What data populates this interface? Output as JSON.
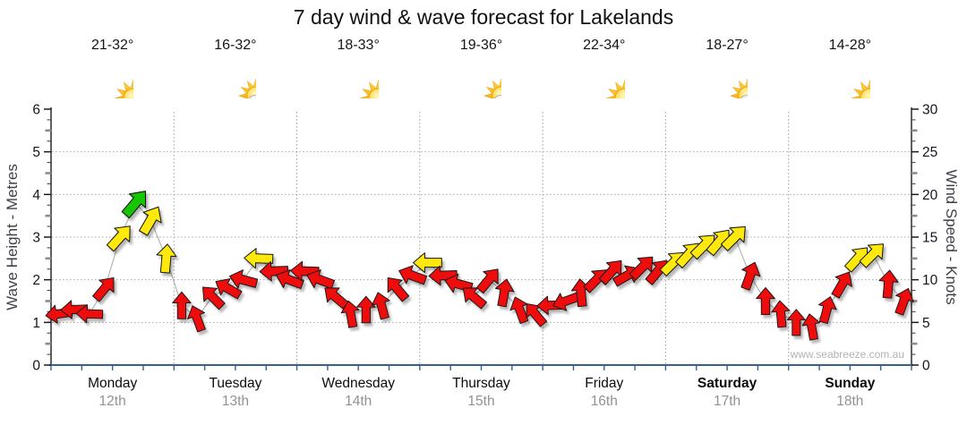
{
  "title": "7 day wind & wave forecast for Lakelands",
  "watermark": "www.seabreeze.com.au",
  "days": [
    {
      "name": "Monday",
      "date": "12th",
      "temp": "21-32°",
      "icon": "sunny",
      "bold": false
    },
    {
      "name": "Tuesday",
      "date": "13th",
      "temp": "16-32°",
      "icon": "partly-cloudy",
      "bold": false
    },
    {
      "name": "Wednesday",
      "date": "14th",
      "temp": "18-33°",
      "icon": "sunny",
      "bold": false
    },
    {
      "name": "Thursday",
      "date": "15th",
      "temp": "19-36°",
      "icon": "partly-cloudy",
      "bold": false
    },
    {
      "name": "Friday",
      "date": "16th",
      "temp": "22-34°",
      "icon": "sunny",
      "bold": false
    },
    {
      "name": "Saturday",
      "date": "17th",
      "temp": "18-27°",
      "icon": "partly-cloudy",
      "bold": true
    },
    {
      "name": "Sunday",
      "date": "18th",
      "temp": "14-28°",
      "icon": "sunny",
      "bold": true
    }
  ],
  "chart_data": {
    "type": "line",
    "title": "7 day wind & wave forecast for Lakelands",
    "y_left": {
      "label": "Wave Height - Metres",
      "min": 0,
      "max": 6,
      "ticks": [
        0,
        1,
        2,
        3,
        4,
        5,
        6
      ]
    },
    "y_right": {
      "label": "Wind Speed - Knots",
      "min": 0,
      "max": 30,
      "ticks": [
        0,
        5,
        10,
        15,
        20,
        25,
        30
      ]
    },
    "x_hours_range": [
      0,
      168
    ],
    "grid": "dotted gray at each labelled value and at day boundaries",
    "arrow_colors": {
      "red": "#ee1111",
      "yellow": "#ffe90a",
      "green": "#17c400"
    },
    "note": "wind arrows plotted every 3h against right axis (knots); arrow rotation = wind direction (0=toward top/N, 90=toward right/E)",
    "point_format": [
      "hour",
      "knots",
      "direction_deg",
      "color"
    ],
    "series": [
      {
        "name": "Wind speed & direction",
        "points": [
          [
            0,
            6,
            262,
            "red"
          ],
          [
            3,
            6.5,
            268,
            "red"
          ],
          [
            6,
            6,
            272,
            "red"
          ],
          [
            9,
            9,
            40,
            "red"
          ],
          [
            12,
            15,
            42,
            "yellow"
          ],
          [
            15,
            19,
            40,
            "green"
          ],
          [
            18,
            17,
            30,
            "yellow"
          ],
          [
            21,
            12.5,
            5,
            "yellow"
          ],
          [
            24,
            7,
            0,
            "red"
          ],
          [
            27,
            5.5,
            340,
            "red"
          ],
          [
            30,
            8,
            315,
            "red"
          ],
          [
            33,
            9,
            300,
            "red"
          ],
          [
            36,
            10,
            285,
            "red"
          ],
          [
            39,
            12.5,
            272,
            "yellow"
          ],
          [
            42,
            11,
            268,
            "red"
          ],
          [
            45,
            10,
            290,
            "red"
          ],
          [
            48,
            11,
            272,
            "red"
          ],
          [
            51,
            10,
            290,
            "red"
          ],
          [
            54,
            8,
            310,
            "red"
          ],
          [
            57,
            6,
            350,
            "red"
          ],
          [
            60,
            6.5,
            0,
            "red"
          ],
          [
            63,
            7,
            345,
            "red"
          ],
          [
            66,
            9,
            320,
            "red"
          ],
          [
            69,
            10.5,
            290,
            "red"
          ],
          [
            72,
            12,
            270,
            "yellow"
          ],
          [
            75,
            10.5,
            268,
            "red"
          ],
          [
            78,
            9.5,
            285,
            "red"
          ],
          [
            81,
            8,
            310,
            "red"
          ],
          [
            84,
            10,
            40,
            "red"
          ],
          [
            87,
            8.5,
            10,
            "red"
          ],
          [
            90,
            6.5,
            340,
            "red"
          ],
          [
            93,
            6,
            320,
            "red"
          ],
          [
            96,
            7,
            268,
            "red"
          ],
          [
            99,
            7.5,
            250,
            "red"
          ],
          [
            102,
            8.5,
            355,
            "red"
          ],
          [
            105,
            10,
            45,
            "red"
          ],
          [
            108,
            11,
            42,
            "red"
          ],
          [
            111,
            10.5,
            60,
            "red"
          ],
          [
            114,
            11.5,
            45,
            "red"
          ],
          [
            117,
            11,
            40,
            "red"
          ],
          [
            120,
            12,
            45,
            "yellow"
          ],
          [
            123,
            13,
            42,
            "yellow"
          ],
          [
            126,
            14,
            45,
            "yellow"
          ],
          [
            129,
            14.5,
            40,
            "yellow"
          ],
          [
            132,
            15,
            45,
            "yellow"
          ],
          [
            135,
            10.5,
            20,
            "red"
          ],
          [
            138,
            7.5,
            0,
            "red"
          ],
          [
            141,
            6,
            355,
            "red"
          ],
          [
            144,
            5,
            0,
            "red"
          ],
          [
            147,
            4.5,
            350,
            "red"
          ],
          [
            150,
            6.5,
            15,
            "red"
          ],
          [
            153,
            9.5,
            30,
            "red"
          ],
          [
            156,
            12.5,
            42,
            "yellow"
          ],
          [
            159,
            13,
            45,
            "yellow"
          ],
          [
            162,
            9.5,
            5,
            "red"
          ],
          [
            165,
            7.5,
            20,
            "red"
          ]
        ]
      }
    ]
  }
}
